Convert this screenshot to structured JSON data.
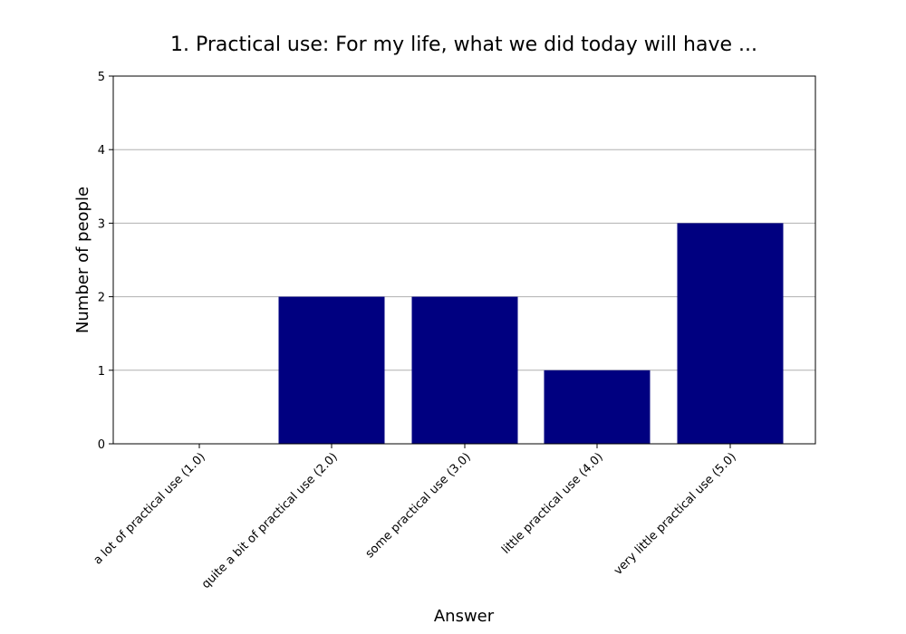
{
  "chart_data": {
    "type": "bar",
    "title": "1. Practical use: For my life, what we did today will have ...",
    "xlabel": "Answer",
    "ylabel": "Number of people",
    "categories": [
      "a lot of practical use (1.0)",
      "quite a bit of practical use (2.0)",
      "some practical use (3.0)",
      "little practical use (4.0)",
      "very little practical use (5.0)"
    ],
    "values": [
      0,
      2,
      2,
      1,
      3
    ],
    "ylim": [
      0,
      5
    ],
    "yticks": [
      0,
      1,
      2,
      3,
      4,
      5
    ],
    "grid": "horizontal",
    "bar_color": "#000080"
  }
}
